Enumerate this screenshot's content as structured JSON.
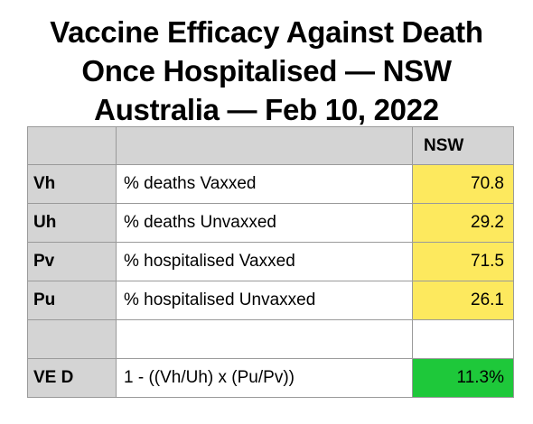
{
  "title": {
    "line1": "Vaccine Efficacy Against Death",
    "line2": "Once Hospitalised — NSW",
    "line3": "Australia — Feb 10, 2022"
  },
  "table": {
    "header": {
      "col1": "",
      "col2": "",
      "col3": "NSW"
    },
    "rows": [
      {
        "code": "Vh",
        "desc": "% deaths Vaxxed",
        "value": "70.8"
      },
      {
        "code": "Uh",
        "desc": "% deaths Unvaxxed",
        "value": "29.2"
      },
      {
        "code": "Pv",
        "desc": "% hospitalised Vaxxed",
        "value": "71.5"
      },
      {
        "code": "Pu",
        "desc": "% hospitalised Unvaxxed",
        "value": "26.1"
      },
      {
        "code": "",
        "desc": "",
        "value": ""
      },
      {
        "code": "VE D",
        "desc": "1 - ((Vh/Uh) x (Pu/Pv))",
        "value": "11.3%"
      }
    ]
  },
  "colors": {
    "header_gray": "#d4d4d4",
    "input_yellow": "#fde95e",
    "result_green": "#1ec83a"
  }
}
